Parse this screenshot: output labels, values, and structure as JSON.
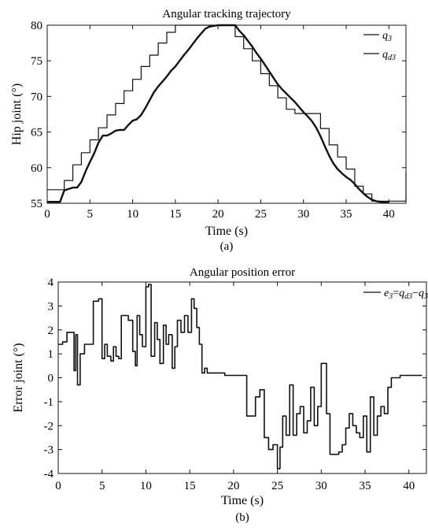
{
  "chart_data": [
    {
      "type": "line",
      "title": "Angular tracking trajectory",
      "xlabel": "Time (s)",
      "ylabel": "Hip joint (°)",
      "caption": "(a)",
      "xlim": [
        0,
        42
      ],
      "ylim": [
        55,
        80
      ],
      "xticks": [
        0,
        5,
        10,
        15,
        20,
        25,
        30,
        35,
        40
      ],
      "yticks": [
        55,
        60,
        65,
        70,
        75,
        80
      ],
      "legend_position": "top-right",
      "grid": false,
      "series": [
        {
          "name": "q3",
          "legend_main": "q",
          "legend_sub": "3",
          "line_width": 2.4,
          "x": [
            0,
            1.5,
            2,
            2.5,
            3,
            3.5,
            4,
            4.5,
            5,
            5.5,
            6,
            6.5,
            7,
            7.5,
            8,
            8.5,
            9,
            9.5,
            10,
            10.5,
            11,
            11.5,
            12,
            12.5,
            13,
            13.5,
            14,
            14.5,
            15,
            15.5,
            16,
            16.5,
            17,
            17.5,
            18,
            18.5,
            19,
            20,
            21,
            22,
            22.5,
            23,
            23.5,
            24,
            24.5,
            25,
            25.5,
            26,
            26.5,
            27,
            27.5,
            28,
            28.5,
            29,
            29.5,
            30,
            30.5,
            31,
            31.5,
            32,
            32.5,
            33,
            33.5,
            34,
            34.5,
            35,
            35.5,
            36,
            36.5,
            37,
            37.5,
            38,
            38.5,
            39,
            39.5,
            40
          ],
          "y": [
            55.2,
            55.2,
            56.8,
            57.0,
            57.2,
            57.2,
            58.0,
            59.5,
            60.8,
            62.0,
            63.5,
            64.5,
            64.5,
            64.8,
            65.2,
            65.3,
            65.3,
            66.0,
            66.6,
            66.8,
            67.4,
            68.4,
            69.5,
            70.6,
            71.4,
            72.1,
            72.8,
            73.6,
            74.2,
            75.0,
            75.8,
            76.5,
            77.3,
            78.1,
            78.8,
            79.5,
            79.8,
            80.0,
            80.0,
            80.0,
            79.2,
            78.6,
            77.8,
            77.0,
            76.1,
            75.3,
            74.4,
            73.5,
            72.6,
            71.7,
            71.0,
            70.4,
            69.8,
            69.2,
            68.5,
            67.8,
            67.2,
            66.5,
            65.6,
            64.4,
            63.0,
            61.7,
            60.6,
            59.8,
            59.2,
            58.7,
            58.3,
            57.7,
            57.0,
            56.4,
            55.9,
            55.5,
            55.3,
            55.2,
            55.1,
            55.1
          ]
        },
        {
          "name": "qd3",
          "legend_main": "q",
          "legend_sub": "d3",
          "line_width": 1.2,
          "step": true,
          "x": [
            0,
            2,
            3,
            4,
            5,
            6,
            7,
            8,
            9,
            10,
            11,
            12,
            13,
            14,
            15,
            16,
            17,
            20.5,
            22,
            23,
            24,
            25,
            26,
            27,
            28,
            29,
            30,
            31,
            32,
            33,
            34,
            35,
            36,
            37,
            38,
            42,
            42
          ],
          "y": [
            56.9,
            58.2,
            60.4,
            62.1,
            63.9,
            65.6,
            67.4,
            69.0,
            70.8,
            72.4,
            74.2,
            75.8,
            77.5,
            79.0,
            80.0,
            80.0,
            80.0,
            80.0,
            78.4,
            76.7,
            75.0,
            73.2,
            71.5,
            69.8,
            68.2,
            67.6,
            67.6,
            67.6,
            65.5,
            63.2,
            61.5,
            59.8,
            57.4,
            56.3,
            55.3,
            55.3,
            59.3
          ]
        }
      ]
    },
    {
      "type": "line",
      "title": "Angular position error",
      "xlabel": "Time (s)",
      "ylabel": "Error joint (°)",
      "caption": "(b)",
      "xlim": [
        0,
        42
      ],
      "ylim": [
        -4,
        4
      ],
      "xticks": [
        0,
        5,
        10,
        15,
        20,
        25,
        30,
        35,
        40
      ],
      "yticks": [
        -4,
        -3,
        -2,
        -1,
        0,
        1,
        2,
        3,
        4
      ],
      "legend_position": "top-right",
      "grid": false,
      "series": [
        {
          "name": "e3=qd3−q3",
          "legend_text": "e3=qd3−q3",
          "legend_parts": [
            [
              "e",
              false
            ],
            [
              "3",
              true
            ],
            [
              "=",
              false
            ],
            [
              "q",
              false
            ],
            [
              "d3",
              true
            ],
            [
              "−",
              false
            ],
            [
              "q",
              false
            ],
            [
              "3",
              true
            ]
          ],
          "line_width": 1.6,
          "step": true,
          "x": [
            0,
            0.5,
            1,
            1.5,
            1.8,
            2.0,
            2.2,
            2.5,
            3.0,
            3.5,
            4.0,
            4.3,
            4.6,
            5.0,
            5.3,
            5.6,
            6.0,
            6.3,
            6.6,
            6.9,
            7.2,
            7.5,
            8.0,
            8.5,
            8.8,
            9.0,
            9.3,
            9.6,
            10.0,
            10.3,
            10.6,
            11.0,
            11.3,
            11.6,
            12.0,
            12.3,
            12.6,
            13.0,
            13.3,
            13.6,
            14.0,
            14.4,
            14.8,
            15.2,
            15.5,
            15.8,
            16.1,
            16.4,
            16.7,
            17.0,
            18.0,
            19.0,
            20.0,
            21.0,
            21.5,
            22.0,
            22.5,
            23.0,
            23.5,
            24.0,
            24.5,
            25.0,
            25.3,
            25.6,
            26.0,
            26.4,
            26.8,
            27.2,
            27.6,
            28.0,
            28.4,
            28.8,
            29.2,
            29.6,
            30.0,
            30.3,
            30.6,
            31.0,
            31.5,
            32.0,
            32.4,
            32.8,
            33.2,
            33.6,
            34.0,
            34.4,
            34.8,
            35.2,
            35.6,
            36.0,
            36.4,
            36.8,
            37.2,
            37.6,
            38.0,
            39.0,
            41.5
          ],
          "y": [
            1.4,
            1.5,
            1.9,
            1.9,
            0.3,
            1.8,
            -0.3,
            1.0,
            1.4,
            1.4,
            3.2,
            3.2,
            3.3,
            0.8,
            1.4,
            0.9,
            0.7,
            1.3,
            0.9,
            0.8,
            2.6,
            2.6,
            2.4,
            1.1,
            0.5,
            2.6,
            1.8,
            1.3,
            3.8,
            3.9,
            0.9,
            2.3,
            1.6,
            0.6,
            2.2,
            1.4,
            1.8,
            0.4,
            1.3,
            2.4,
            1.9,
            2.6,
            1.9,
            3.3,
            2.9,
            2.1,
            1.4,
            0.2,
            0.4,
            0.2,
            0.2,
            0.1,
            0.1,
            0.1,
            -1.6,
            -1.6,
            -0.8,
            -0.5,
            -2.5,
            -3.0,
            -2.8,
            -3.8,
            -2.9,
            -1.6,
            -2.4,
            -0.3,
            -2.4,
            -1.5,
            -1.2,
            -2.3,
            -1.8,
            -0.4,
            -2.0,
            -1.2,
            0.6,
            0.6,
            -1.5,
            -3.2,
            -3.2,
            -3.1,
            -2.8,
            -2.1,
            -1.5,
            -2.0,
            -2.3,
            -2.5,
            -1.6,
            -3.1,
            -0.8,
            -2.4,
            -1.6,
            -1.2,
            -1.5,
            -0.4,
            0.0,
            0.1,
            0.1
          ]
        }
      ]
    }
  ]
}
